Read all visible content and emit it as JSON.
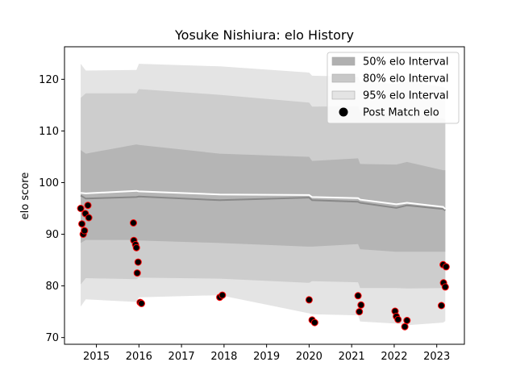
{
  "chart_data": {
    "type": "scatter",
    "title": "Yosuke Nishiura: elo History",
    "xlabel": "",
    "ylabel": "elo score",
    "xlim": [
      2014.25,
      2023.65
    ],
    "ylim": [
      68.7,
      126.3
    ],
    "x_ticks": [
      2015,
      2016,
      2017,
      2018,
      2019,
      2020,
      2021,
      2022,
      2023
    ],
    "y_ticks": [
      70,
      80,
      90,
      100,
      110,
      120
    ],
    "grid": false,
    "legend_position": "top-right",
    "legend": [
      {
        "label": "50% elo Interval",
        "kind": "band",
        "color": "#b0b0b0"
      },
      {
        "label": "80% elo Interval",
        "kind": "band",
        "color": "#c8c8c8"
      },
      {
        "label": "95% elo Interval",
        "kind": "band",
        "color": "#e4e4e4"
      },
      {
        "label": "Post Match elo",
        "kind": "marker",
        "color": "#000000"
      }
    ],
    "colors": {
      "band_50": "#b5b5b5",
      "band_80": "#cdcdcd",
      "band_95": "#e4e4e4",
      "mean_line": "#888888",
      "upper_line": "#ffffff",
      "point_fill": "#000000",
      "point_edge": "#ff0000"
    },
    "bands": {
      "x": [
        2014.63,
        2014.75,
        2015.94,
        2016.0,
        2017.9,
        2020.0,
        2020.07,
        2021.15,
        2021.2,
        2022.05,
        2022.3,
        2023.15,
        2023.2
      ],
      "band_95_upper": [
        123.0,
        121.7,
        121.8,
        123.0,
        122.5,
        121.3,
        120.7,
        120.5,
        119.6,
        119.1,
        119.6,
        118.5,
        118.3
      ],
      "band_95_lower": [
        76.0,
        77.4,
        76.9,
        77.8,
        78.2,
        74.7,
        74.5,
        74.3,
        73.1,
        72.7,
        72.4,
        72.9,
        73.2
      ],
      "band_80_upper": [
        116.4,
        117.3,
        117.3,
        118.1,
        117.0,
        115.5,
        114.7,
        114.8,
        113.6,
        113.3,
        113.6,
        112.4,
        112.2
      ],
      "band_80_lower": [
        80.3,
        81.5,
        81.3,
        81.6,
        81.4,
        80.6,
        80.9,
        80.7,
        79.6,
        79.6,
        79.5,
        79.6,
        79.6
      ],
      "band_50_upper": [
        106.3,
        105.6,
        107.4,
        107.3,
        105.6,
        105.0,
        104.2,
        104.7,
        103.6,
        103.5,
        104.0,
        102.4,
        102.4
      ],
      "band_50_lower": [
        88.3,
        88.9,
        88.9,
        88.8,
        88.3,
        87.6,
        87.6,
        88.1,
        87.1,
        86.6,
        86.6,
        86.6,
        86.6
      ],
      "mean": [
        97.5,
        96.9,
        97.2,
        97.3,
        96.6,
        97.1,
        96.6,
        96.3,
        96.1,
        95.1,
        95.6,
        94.9,
        94.6
      ],
      "upper_edge": [
        98.0,
        97.9,
        98.4,
        98.3,
        97.7,
        97.6,
        97.2,
        97.0,
        96.7,
        95.8,
        96.1,
        95.3,
        94.9
      ]
    },
    "points": [
      {
        "x": 2014.63,
        "y": 95.0
      },
      {
        "x": 2014.66,
        "y": 92.0
      },
      {
        "x": 2014.69,
        "y": 90.0
      },
      {
        "x": 2014.72,
        "y": 90.7
      },
      {
        "x": 2014.74,
        "y": 94.0
      },
      {
        "x": 2014.8,
        "y": 95.6
      },
      {
        "x": 2014.82,
        "y": 93.2
      },
      {
        "x": 2015.87,
        "y": 92.2
      },
      {
        "x": 2015.88,
        "y": 88.8
      },
      {
        "x": 2015.92,
        "y": 88.0
      },
      {
        "x": 2015.94,
        "y": 87.4
      },
      {
        "x": 2015.96,
        "y": 82.5
      },
      {
        "x": 2015.98,
        "y": 84.6
      },
      {
        "x": 2016.03,
        "y": 76.8
      },
      {
        "x": 2016.06,
        "y": 76.6
      },
      {
        "x": 2017.9,
        "y": 77.8
      },
      {
        "x": 2017.96,
        "y": 78.2
      },
      {
        "x": 2020.0,
        "y": 77.3
      },
      {
        "x": 2020.07,
        "y": 73.4
      },
      {
        "x": 2020.13,
        "y": 72.9
      },
      {
        "x": 2021.15,
        "y": 78.1
      },
      {
        "x": 2021.18,
        "y": 75.0
      },
      {
        "x": 2021.22,
        "y": 76.3
      },
      {
        "x": 2022.02,
        "y": 75.1
      },
      {
        "x": 2022.05,
        "y": 74.1
      },
      {
        "x": 2022.09,
        "y": 73.5
      },
      {
        "x": 2022.25,
        "y": 72.1
      },
      {
        "x": 2022.3,
        "y": 73.3
      },
      {
        "x": 2023.11,
        "y": 76.2
      },
      {
        "x": 2023.15,
        "y": 84.1
      },
      {
        "x": 2023.16,
        "y": 80.6
      },
      {
        "x": 2023.2,
        "y": 79.8
      },
      {
        "x": 2023.22,
        "y": 83.7
      }
    ]
  }
}
